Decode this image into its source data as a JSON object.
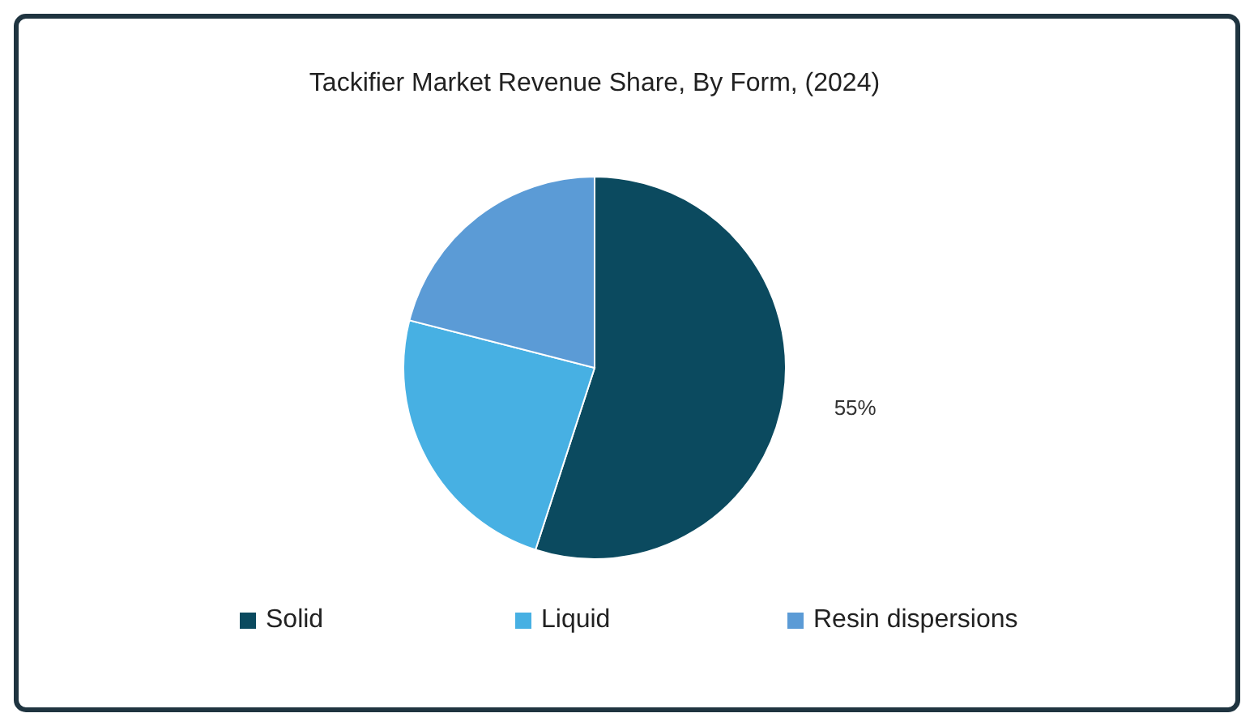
{
  "chart_data": {
    "type": "pie",
    "title": "Tackifier Market Revenue Share, By Form, (2024)",
    "categories": [
      "Solid",
      "Liquid",
      "Resin dispersions"
    ],
    "values": [
      55,
      24,
      21
    ],
    "colors": [
      "#0b4a5f",
      "#47b0e3",
      "#5b9bd6"
    ],
    "value_labels": [
      "55%",
      null,
      null
    ],
    "legend": "bottom"
  }
}
